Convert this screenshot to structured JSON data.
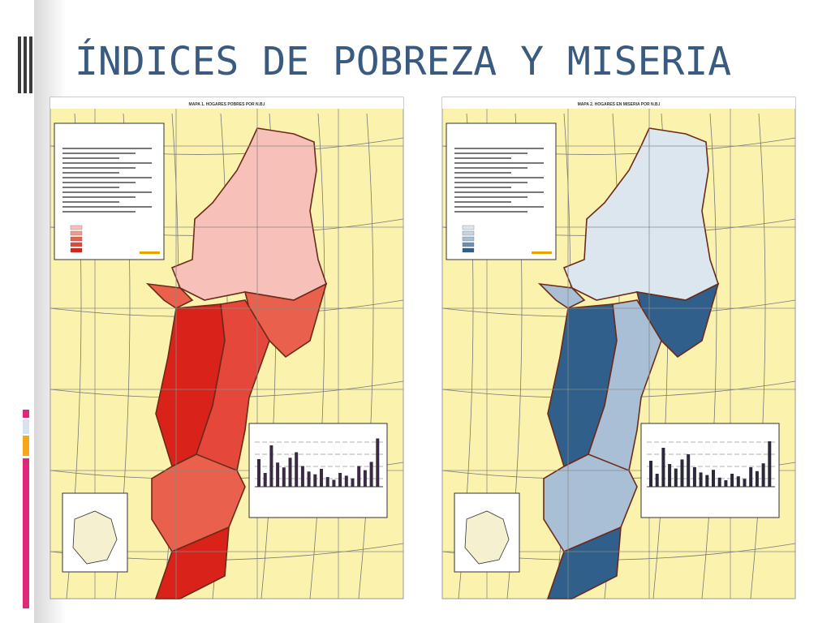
{
  "header": {
    "title": "ÍNDICES DE POBREZA Y MISERIA"
  },
  "maps": [
    {
      "title": "MAPA 1. HOGARES POBRES POR N.B.I"
    },
    {
      "title": "MAPA 2. HOGARES EN MISERIA POR N.B.I"
    }
  ]
}
